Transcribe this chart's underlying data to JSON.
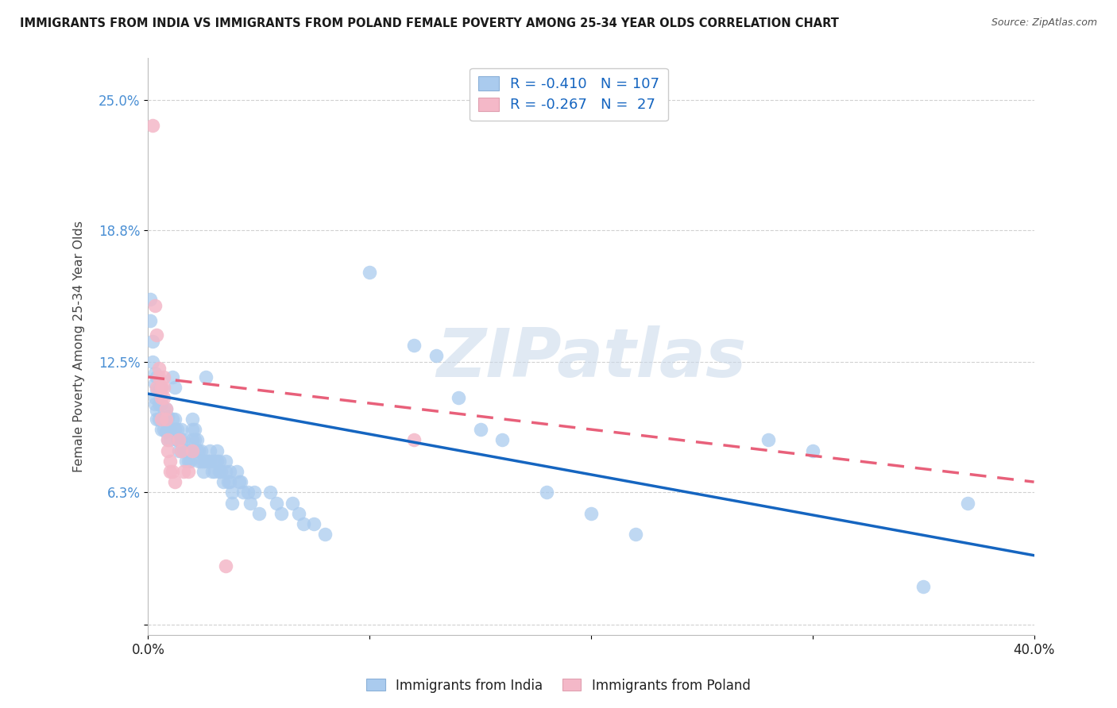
{
  "title": "IMMIGRANTS FROM INDIA VS IMMIGRANTS FROM POLAND FEMALE POVERTY AMONG 25-34 YEAR OLDS CORRELATION CHART",
  "source": "Source: ZipAtlas.com",
  "ylabel": "Female Poverty Among 25-34 Year Olds",
  "y_tick_labels": [
    "",
    "6.3%",
    "12.5%",
    "18.8%",
    "25.0%"
  ],
  "y_tick_values": [
    0,
    0.063,
    0.125,
    0.188,
    0.25
  ],
  "x_range": [
    0.0,
    0.4
  ],
  "y_range": [
    -0.005,
    0.27
  ],
  "india_R": -0.41,
  "india_N": 107,
  "poland_R": -0.267,
  "poland_N": 27,
  "india_color": "#aacbee",
  "poland_color": "#f4b8c8",
  "india_line_color": "#1565c0",
  "poland_line_color": "#e8607a",
  "india_scatter": [
    [
      0.001,
      0.155
    ],
    [
      0.001,
      0.145
    ],
    [
      0.002,
      0.135
    ],
    [
      0.002,
      0.125
    ],
    [
      0.003,
      0.12
    ],
    [
      0.003,
      0.115
    ],
    [
      0.003,
      0.108
    ],
    [
      0.003,
      0.105
    ],
    [
      0.004,
      0.118
    ],
    [
      0.004,
      0.112
    ],
    [
      0.004,
      0.102
    ],
    [
      0.004,
      0.098
    ],
    [
      0.005,
      0.112
    ],
    [
      0.005,
      0.105
    ],
    [
      0.005,
      0.098
    ],
    [
      0.006,
      0.113
    ],
    [
      0.006,
      0.105
    ],
    [
      0.006,
      0.098
    ],
    [
      0.006,
      0.093
    ],
    [
      0.007,
      0.103
    ],
    [
      0.007,
      0.098
    ],
    [
      0.007,
      0.093
    ],
    [
      0.008,
      0.103
    ],
    [
      0.008,
      0.098
    ],
    [
      0.008,
      0.092
    ],
    [
      0.009,
      0.099
    ],
    [
      0.009,
      0.093
    ],
    [
      0.009,
      0.088
    ],
    [
      0.01,
      0.093
    ],
    [
      0.01,
      0.088
    ],
    [
      0.011,
      0.118
    ],
    [
      0.011,
      0.098
    ],
    [
      0.012,
      0.113
    ],
    [
      0.012,
      0.098
    ],
    [
      0.012,
      0.093
    ],
    [
      0.013,
      0.093
    ],
    [
      0.013,
      0.088
    ],
    [
      0.014,
      0.088
    ],
    [
      0.014,
      0.083
    ],
    [
      0.015,
      0.093
    ],
    [
      0.015,
      0.088
    ],
    [
      0.015,
      0.083
    ],
    [
      0.016,
      0.088
    ],
    [
      0.016,
      0.083
    ],
    [
      0.017,
      0.083
    ],
    [
      0.017,
      0.078
    ],
    [
      0.018,
      0.083
    ],
    [
      0.018,
      0.078
    ],
    [
      0.019,
      0.083
    ],
    [
      0.019,
      0.078
    ],
    [
      0.02,
      0.098
    ],
    [
      0.02,
      0.093
    ],
    [
      0.02,
      0.088
    ],
    [
      0.021,
      0.093
    ],
    [
      0.021,
      0.088
    ],
    [
      0.022,
      0.088
    ],
    [
      0.022,
      0.083
    ],
    [
      0.023,
      0.083
    ],
    [
      0.023,
      0.078
    ],
    [
      0.024,
      0.083
    ],
    [
      0.024,
      0.078
    ],
    [
      0.025,
      0.078
    ],
    [
      0.025,
      0.073
    ],
    [
      0.026,
      0.118
    ],
    [
      0.026,
      0.078
    ],
    [
      0.027,
      0.078
    ],
    [
      0.028,
      0.083
    ],
    [
      0.028,
      0.078
    ],
    [
      0.029,
      0.073
    ],
    [
      0.03,
      0.078
    ],
    [
      0.03,
      0.073
    ],
    [
      0.031,
      0.083
    ],
    [
      0.031,
      0.078
    ],
    [
      0.032,
      0.078
    ],
    [
      0.032,
      0.073
    ],
    [
      0.033,
      0.073
    ],
    [
      0.034,
      0.068
    ],
    [
      0.035,
      0.078
    ],
    [
      0.035,
      0.073
    ],
    [
      0.036,
      0.068
    ],
    [
      0.037,
      0.073
    ],
    [
      0.037,
      0.068
    ],
    [
      0.038,
      0.063
    ],
    [
      0.038,
      0.058
    ],
    [
      0.04,
      0.073
    ],
    [
      0.041,
      0.068
    ],
    [
      0.042,
      0.068
    ],
    [
      0.043,
      0.063
    ],
    [
      0.045,
      0.063
    ],
    [
      0.046,
      0.058
    ],
    [
      0.048,
      0.063
    ],
    [
      0.05,
      0.053
    ],
    [
      0.055,
      0.063
    ],
    [
      0.058,
      0.058
    ],
    [
      0.06,
      0.053
    ],
    [
      0.065,
      0.058
    ],
    [
      0.068,
      0.053
    ],
    [
      0.07,
      0.048
    ],
    [
      0.075,
      0.048
    ],
    [
      0.08,
      0.043
    ],
    [
      0.1,
      0.168
    ],
    [
      0.12,
      0.133
    ],
    [
      0.13,
      0.128
    ],
    [
      0.14,
      0.108
    ],
    [
      0.15,
      0.093
    ],
    [
      0.16,
      0.088
    ],
    [
      0.18,
      0.063
    ],
    [
      0.2,
      0.053
    ],
    [
      0.22,
      0.043
    ],
    [
      0.28,
      0.088
    ],
    [
      0.3,
      0.083
    ],
    [
      0.35,
      0.018
    ],
    [
      0.37,
      0.058
    ]
  ],
  "poland_scatter": [
    [
      0.002,
      0.238
    ],
    [
      0.003,
      0.152
    ],
    [
      0.004,
      0.138
    ],
    [
      0.004,
      0.113
    ],
    [
      0.005,
      0.122
    ],
    [
      0.005,
      0.118
    ],
    [
      0.006,
      0.113
    ],
    [
      0.006,
      0.108
    ],
    [
      0.006,
      0.098
    ],
    [
      0.007,
      0.118
    ],
    [
      0.007,
      0.113
    ],
    [
      0.007,
      0.108
    ],
    [
      0.008,
      0.103
    ],
    [
      0.008,
      0.098
    ],
    [
      0.009,
      0.088
    ],
    [
      0.009,
      0.083
    ],
    [
      0.01,
      0.078
    ],
    [
      0.01,
      0.073
    ],
    [
      0.011,
      0.073
    ],
    [
      0.012,
      0.068
    ],
    [
      0.014,
      0.088
    ],
    [
      0.015,
      0.083
    ],
    [
      0.016,
      0.073
    ],
    [
      0.018,
      0.073
    ],
    [
      0.02,
      0.083
    ],
    [
      0.035,
      0.028
    ],
    [
      0.12,
      0.088
    ]
  ],
  "india_line": {
    "x0": 0.0,
    "x1": 0.4,
    "y0": 0.11,
    "y1": 0.033
  },
  "poland_line": {
    "x0": 0.0,
    "x1": 0.4,
    "y0": 0.118,
    "y1": 0.068
  },
  "watermark_text": "ZIPatlas",
  "background_color": "#ffffff",
  "grid_color": "#cccccc",
  "legend_india_label": "R = -0.410   N = 107",
  "legend_poland_label": "R = -0.267   N =  27",
  "bottom_legend_india": "Immigrants from India",
  "bottom_legend_poland": "Immigrants from Poland"
}
